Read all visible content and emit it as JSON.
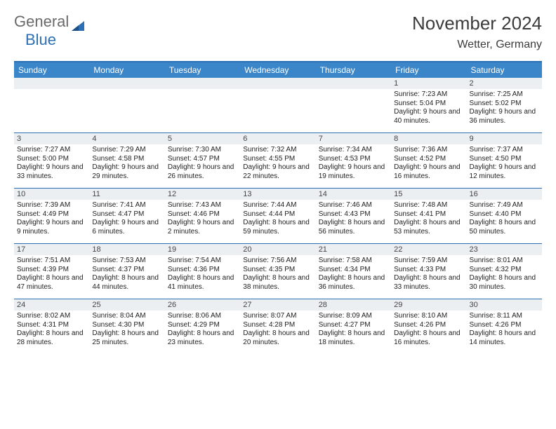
{
  "logo": {
    "part1": "General",
    "part2": "Blue"
  },
  "title": "November 2024",
  "location": "Wetter, Germany",
  "colors": {
    "header_bg": "#3b86c8",
    "border": "#2d6fb5",
    "daynum_bg": "#eceff1",
    "text": "#222222",
    "title_text": "#3b3b3b"
  },
  "dow": [
    "Sunday",
    "Monday",
    "Tuesday",
    "Wednesday",
    "Thursday",
    "Friday",
    "Saturday"
  ],
  "weeks": [
    [
      {
        "n": "",
        "sr": "",
        "ss": "",
        "dl": ""
      },
      {
        "n": "",
        "sr": "",
        "ss": "",
        "dl": ""
      },
      {
        "n": "",
        "sr": "",
        "ss": "",
        "dl": ""
      },
      {
        "n": "",
        "sr": "",
        "ss": "",
        "dl": ""
      },
      {
        "n": "",
        "sr": "",
        "ss": "",
        "dl": ""
      },
      {
        "n": "1",
        "sr": "Sunrise: 7:23 AM",
        "ss": "Sunset: 5:04 PM",
        "dl": "Daylight: 9 hours and 40 minutes."
      },
      {
        "n": "2",
        "sr": "Sunrise: 7:25 AM",
        "ss": "Sunset: 5:02 PM",
        "dl": "Daylight: 9 hours and 36 minutes."
      }
    ],
    [
      {
        "n": "3",
        "sr": "Sunrise: 7:27 AM",
        "ss": "Sunset: 5:00 PM",
        "dl": "Daylight: 9 hours and 33 minutes."
      },
      {
        "n": "4",
        "sr": "Sunrise: 7:29 AM",
        "ss": "Sunset: 4:58 PM",
        "dl": "Daylight: 9 hours and 29 minutes."
      },
      {
        "n": "5",
        "sr": "Sunrise: 7:30 AM",
        "ss": "Sunset: 4:57 PM",
        "dl": "Daylight: 9 hours and 26 minutes."
      },
      {
        "n": "6",
        "sr": "Sunrise: 7:32 AM",
        "ss": "Sunset: 4:55 PM",
        "dl": "Daylight: 9 hours and 22 minutes."
      },
      {
        "n": "7",
        "sr": "Sunrise: 7:34 AM",
        "ss": "Sunset: 4:53 PM",
        "dl": "Daylight: 9 hours and 19 minutes."
      },
      {
        "n": "8",
        "sr": "Sunrise: 7:36 AM",
        "ss": "Sunset: 4:52 PM",
        "dl": "Daylight: 9 hours and 16 minutes."
      },
      {
        "n": "9",
        "sr": "Sunrise: 7:37 AM",
        "ss": "Sunset: 4:50 PM",
        "dl": "Daylight: 9 hours and 12 minutes."
      }
    ],
    [
      {
        "n": "10",
        "sr": "Sunrise: 7:39 AM",
        "ss": "Sunset: 4:49 PM",
        "dl": "Daylight: 9 hours and 9 minutes."
      },
      {
        "n": "11",
        "sr": "Sunrise: 7:41 AM",
        "ss": "Sunset: 4:47 PM",
        "dl": "Daylight: 9 hours and 6 minutes."
      },
      {
        "n": "12",
        "sr": "Sunrise: 7:43 AM",
        "ss": "Sunset: 4:46 PM",
        "dl": "Daylight: 9 hours and 2 minutes."
      },
      {
        "n": "13",
        "sr": "Sunrise: 7:44 AM",
        "ss": "Sunset: 4:44 PM",
        "dl": "Daylight: 8 hours and 59 minutes."
      },
      {
        "n": "14",
        "sr": "Sunrise: 7:46 AM",
        "ss": "Sunset: 4:43 PM",
        "dl": "Daylight: 8 hours and 56 minutes."
      },
      {
        "n": "15",
        "sr": "Sunrise: 7:48 AM",
        "ss": "Sunset: 4:41 PM",
        "dl": "Daylight: 8 hours and 53 minutes."
      },
      {
        "n": "16",
        "sr": "Sunrise: 7:49 AM",
        "ss": "Sunset: 4:40 PM",
        "dl": "Daylight: 8 hours and 50 minutes."
      }
    ],
    [
      {
        "n": "17",
        "sr": "Sunrise: 7:51 AM",
        "ss": "Sunset: 4:39 PM",
        "dl": "Daylight: 8 hours and 47 minutes."
      },
      {
        "n": "18",
        "sr": "Sunrise: 7:53 AM",
        "ss": "Sunset: 4:37 PM",
        "dl": "Daylight: 8 hours and 44 minutes."
      },
      {
        "n": "19",
        "sr": "Sunrise: 7:54 AM",
        "ss": "Sunset: 4:36 PM",
        "dl": "Daylight: 8 hours and 41 minutes."
      },
      {
        "n": "20",
        "sr": "Sunrise: 7:56 AM",
        "ss": "Sunset: 4:35 PM",
        "dl": "Daylight: 8 hours and 38 minutes."
      },
      {
        "n": "21",
        "sr": "Sunrise: 7:58 AM",
        "ss": "Sunset: 4:34 PM",
        "dl": "Daylight: 8 hours and 36 minutes."
      },
      {
        "n": "22",
        "sr": "Sunrise: 7:59 AM",
        "ss": "Sunset: 4:33 PM",
        "dl": "Daylight: 8 hours and 33 minutes."
      },
      {
        "n": "23",
        "sr": "Sunrise: 8:01 AM",
        "ss": "Sunset: 4:32 PM",
        "dl": "Daylight: 8 hours and 30 minutes."
      }
    ],
    [
      {
        "n": "24",
        "sr": "Sunrise: 8:02 AM",
        "ss": "Sunset: 4:31 PM",
        "dl": "Daylight: 8 hours and 28 minutes."
      },
      {
        "n": "25",
        "sr": "Sunrise: 8:04 AM",
        "ss": "Sunset: 4:30 PM",
        "dl": "Daylight: 8 hours and 25 minutes."
      },
      {
        "n": "26",
        "sr": "Sunrise: 8:06 AM",
        "ss": "Sunset: 4:29 PM",
        "dl": "Daylight: 8 hours and 23 minutes."
      },
      {
        "n": "27",
        "sr": "Sunrise: 8:07 AM",
        "ss": "Sunset: 4:28 PM",
        "dl": "Daylight: 8 hours and 20 minutes."
      },
      {
        "n": "28",
        "sr": "Sunrise: 8:09 AM",
        "ss": "Sunset: 4:27 PM",
        "dl": "Daylight: 8 hours and 18 minutes."
      },
      {
        "n": "29",
        "sr": "Sunrise: 8:10 AM",
        "ss": "Sunset: 4:26 PM",
        "dl": "Daylight: 8 hours and 16 minutes."
      },
      {
        "n": "30",
        "sr": "Sunrise: 8:11 AM",
        "ss": "Sunset: 4:26 PM",
        "dl": "Daylight: 8 hours and 14 minutes."
      }
    ]
  ]
}
